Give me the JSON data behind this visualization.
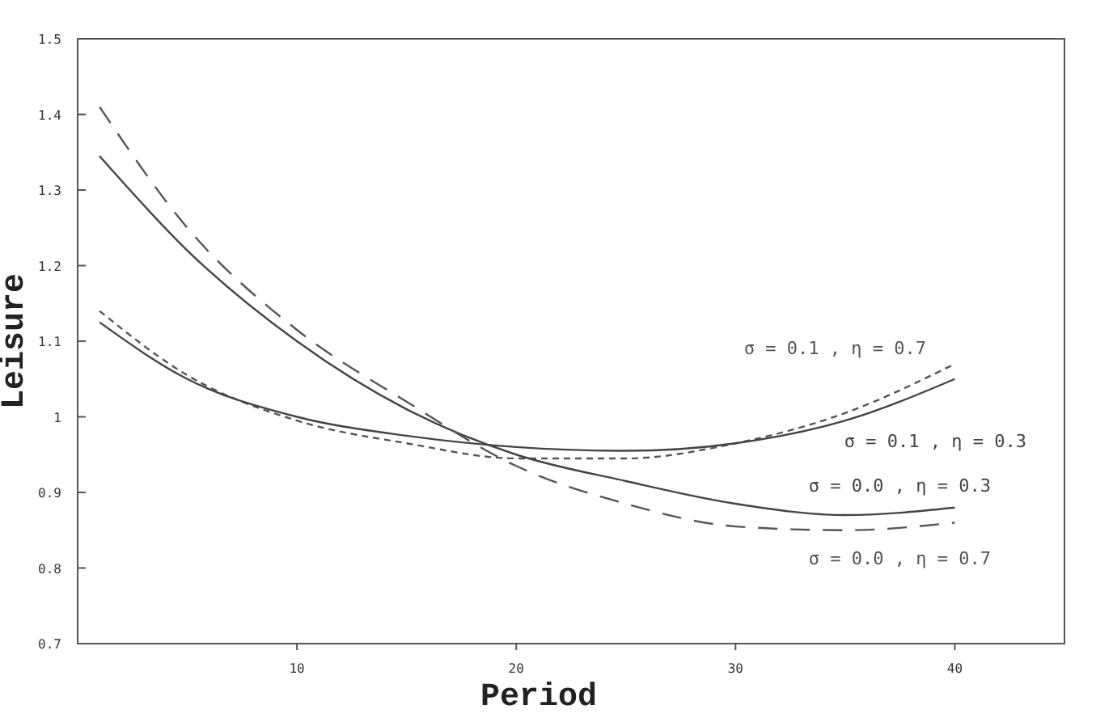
{
  "chart_data": {
    "type": "line",
    "xlabel": "Period",
    "ylabel": "Leisure",
    "x": [
      1,
      5,
      10,
      15,
      20,
      25,
      30,
      35,
      40
    ],
    "xlim": [
      0,
      45
    ],
    "xticks": [
      10,
      20,
      30,
      40
    ],
    "ylim": [
      0.7,
      1.5
    ],
    "yticks": [
      0.7,
      0.8,
      0.9,
      {
        "value": 1,
        "label": "1"
      },
      1.1,
      1.2,
      1.3,
      1.4,
      1.5
    ],
    "grid": false,
    "marker": "none",
    "series": [
      {
        "name": "σ = 0.1 , η = 0.7",
        "color": "#555555",
        "line_style": "dotted",
        "values": [
          1.14,
          1.055,
          0.995,
          0.965,
          0.945,
          0.945,
          0.965,
          1.005,
          1.07
        ]
      },
      {
        "name": "σ = 0.1 , η = 0.3",
        "color": "#444444",
        "line_style": "solid",
        "values": [
          1.125,
          1.05,
          1.0,
          0.975,
          0.96,
          0.955,
          0.965,
          0.995,
          1.05
        ]
      },
      {
        "name": "σ = 0.0 , η = 0.3",
        "color": "#444444",
        "line_style": "solid",
        "values": [
          1.345,
          1.22,
          1.1,
          1.01,
          0.95,
          0.915,
          0.885,
          0.87,
          0.88
        ]
      },
      {
        "name": "σ = 0.0 , η = 0.7",
        "color": "#555555",
        "line_style": "dashed",
        "values": [
          1.41,
          1.25,
          1.115,
          1.02,
          0.935,
          0.885,
          0.855,
          0.85,
          0.86
        ]
      }
    ]
  }
}
